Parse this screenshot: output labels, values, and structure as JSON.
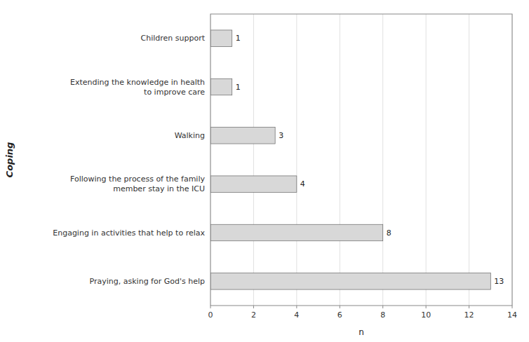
{
  "chart_data": {
    "type": "bar",
    "orientation": "horizontal",
    "categories": [
      "Praying, asking for God's help",
      "Engaging in activities that help to relax",
      "Following the process of the family\nmember stay in the ICU",
      "Walking",
      "Extending the knowledge in health\nto improve care",
      "Children support"
    ],
    "values": [
      13,
      8,
      4,
      3,
      1,
      1
    ],
    "color": "#d8d8d8",
    "xlabel": "n",
    "ylabel": "Coping",
    "xlim": [
      0,
      14
    ],
    "xticks": [
      0,
      2,
      4,
      6,
      8,
      10,
      12,
      14
    ],
    "grid": true,
    "data_labels": true
  }
}
